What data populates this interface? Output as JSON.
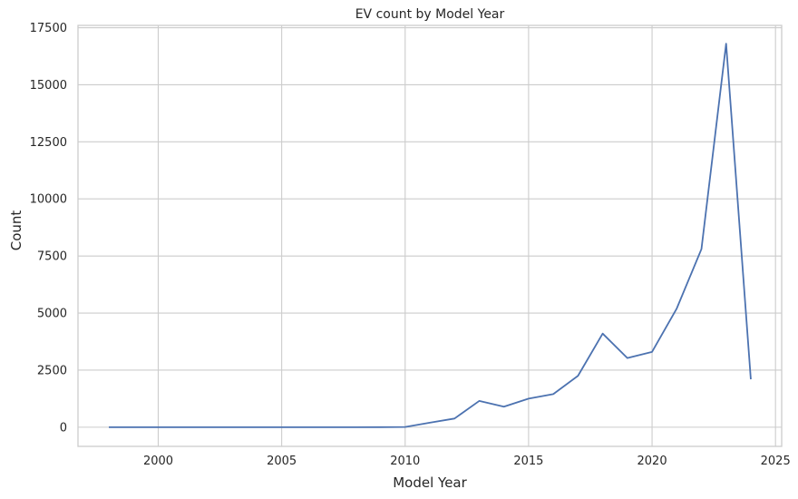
{
  "chart_data": {
    "type": "line",
    "title": "EV count by Model Year",
    "xlabel": "Model Year",
    "ylabel": "Count",
    "xlim": [
      1996.75,
      2025.25
    ],
    "ylim": [
      -840,
      17600
    ],
    "xticks": [
      2000,
      2005,
      2010,
      2015,
      2020,
      2025
    ],
    "yticks": [
      0,
      2500,
      5000,
      7500,
      10000,
      12500,
      15000,
      17500
    ],
    "grid": true,
    "series": [
      {
        "color": "#4c72b0",
        "x": [
          1998,
          1999,
          2000,
          2001,
          2002,
          2003,
          2004,
          2005,
          2006,
          2007,
          2008,
          2009,
          2010,
          2011,
          2012,
          2013,
          2014,
          2015,
          2016,
          2017,
          2018,
          2019,
          2020,
          2021,
          2022,
          2023,
          2024
        ],
        "y": [
          1,
          1,
          1,
          1,
          1,
          1,
          1,
          1,
          1,
          1,
          1,
          3,
          8,
          200,
          380,
          1150,
          900,
          1250,
          1450,
          2250,
          4100,
          3030,
          3300,
          5200,
          7800,
          16800,
          2100
        ]
      }
    ]
  }
}
